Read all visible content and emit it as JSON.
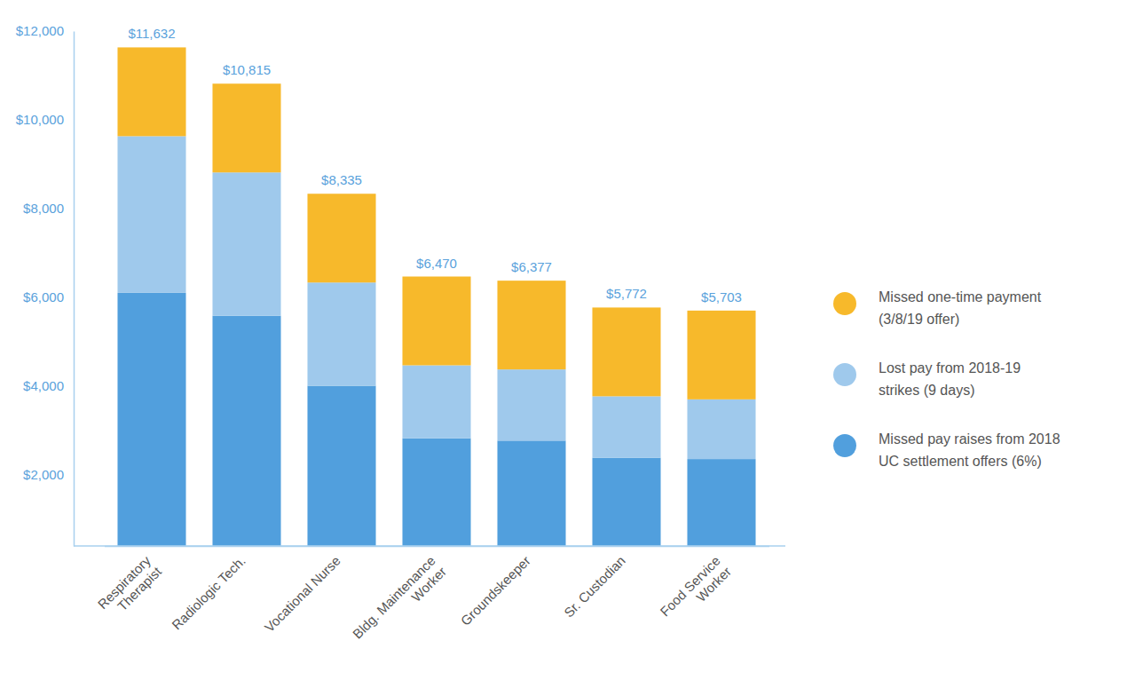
{
  "chart_data": {
    "type": "bar",
    "stacked": true,
    "legend": "right",
    "categories": [
      "Respiratory\nTherapist",
      "Radiologic Tech.",
      "Vocational Nurse",
      "Bldg. Maintenance\nWorker",
      "Groundskeeper",
      "Sr. Custodian",
      "Food Service\nWorker"
    ],
    "series": [
      {
        "name": "Missed one-time payment\n(3/8/19 offer)",
        "color": "#f7b92b",
        "values": [
          2000,
          2000,
          2000,
          2000,
          2000,
          2000,
          2000
        ]
      },
      {
        "name": "Lost pay from 2018-19\nstrikes (9 days)",
        "color": "#9fc9ec",
        "values": [
          3530,
          3228,
          2326,
          1644,
          1604,
          1384,
          1345
        ]
      },
      {
        "name": "Missed pay raises from 2018\nUC settlement offers (6%)",
        "color": "#519fdd",
        "values": [
          6102,
          5587,
          4009,
          2826,
          2773,
          2388,
          2358
        ]
      }
    ],
    "totals": [
      11632,
      10815,
      8335,
      6470,
      6377,
      5772,
      5703
    ],
    "total_labels": [
      "$11,632",
      "$10,815",
      "$8,335",
      "$6,470",
      "$6,377",
      "$5,772",
      "$5,703"
    ],
    "ylim": [
      400,
      12000
    ],
    "yticks": [
      {
        "value": 2000,
        "label": "$2,000"
      },
      {
        "value": 4000,
        "label": "$4,000"
      },
      {
        "value": 6000,
        "label": "$6,000"
      },
      {
        "value": 8000,
        "label": "$8,000"
      },
      {
        "value": 10000,
        "label": "$10,000"
      },
      {
        "value": 12000,
        "label": "$12,000"
      }
    ],
    "grid": false
  }
}
